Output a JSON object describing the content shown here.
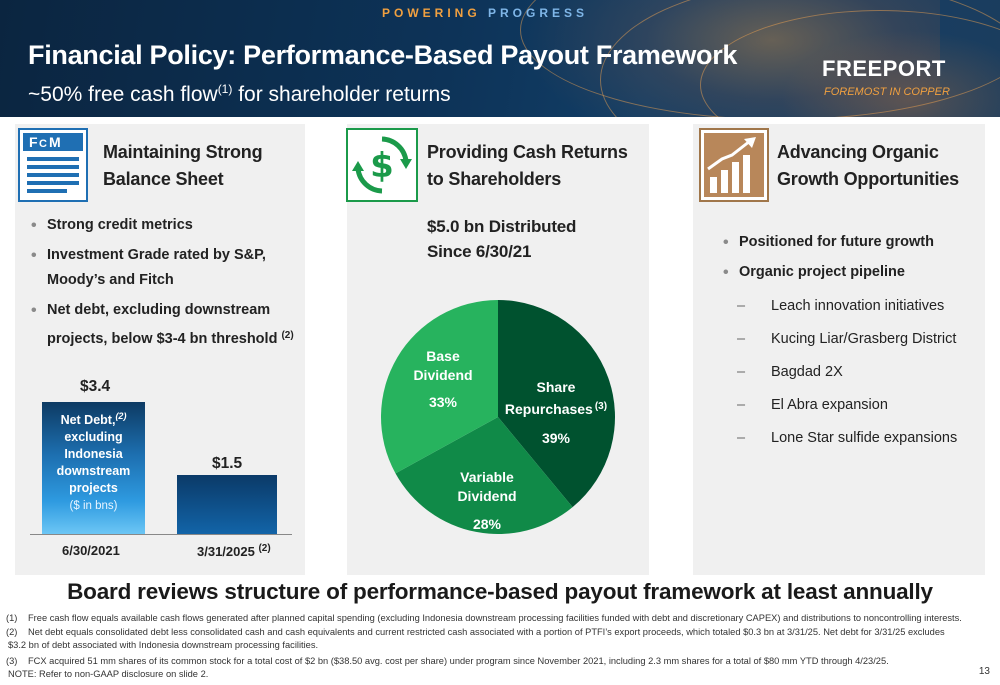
{
  "header": {
    "tagline_part1": "POWERING",
    "tagline_part2": "PROGRESS",
    "title": "Financial Policy: Performance-Based Payout Framework",
    "subtitle_prefix": "~50% free cash flow",
    "subtitle_ref": "(1)",
    "subtitle_suffix": " for shareholder returns",
    "logo": "FREEPORT",
    "logo_tagline": "FOREMOST IN COPPER"
  },
  "panel1": {
    "icon": "fcx-document-icon",
    "title_line1": "Maintaining Strong",
    "title_line2": "Balance Sheet",
    "bullets": [
      "Strong credit metrics",
      "Investment Grade rated by S&P, Moody’s and Fitch",
      "Net debt, excluding downstream projects, below $3-4 bn threshold"
    ],
    "bullet3_ref": "(2)",
    "bar_chart": {
      "bar1_value_label": "$3.4",
      "bar2_value_label": "$1.5",
      "bar1_text_line1": "Net Debt,",
      "bar1_text_ref": "(2)",
      "bar1_text_line2": "excluding",
      "bar1_text_line3": "Indonesia",
      "bar1_text_line4": "downstream",
      "bar1_text_line5": "projects",
      "units": "($ in bns)",
      "x1": "6/30/2021",
      "x2": "3/31/2025",
      "x2_ref": "(2)"
    }
  },
  "panel2": {
    "icon": "dollar-cycle-icon",
    "title_line1": "Providing Cash Returns",
    "title_line2": "to Shareholders",
    "chart_title_line1": "$5.0 bn Distributed",
    "chart_title_line2": "Since 6/30/21",
    "slices": {
      "base_label1": "Base",
      "base_label2": "Dividend",
      "base_pct": "33%",
      "share_label1": "Share",
      "share_label2": "Repurchases",
      "share_ref": "(3)",
      "share_pct": "39%",
      "var_label1": "Variable",
      "var_label2": "Dividend",
      "var_pct": "28%"
    },
    "colors": {
      "share": "#00522f",
      "variable": "#108a48",
      "base": "#27b35e"
    }
  },
  "panel3": {
    "icon": "growth-chart-icon",
    "title_line1": "Advancing Organic",
    "title_line2": "Growth Opportunities",
    "bullets": [
      "Positioned for future growth",
      "Organic project pipeline"
    ],
    "sub_items": [
      "Leach innovation initiatives",
      "Kucing Liar/Grasberg District",
      "Bagdad 2X",
      "El Abra expansion",
      "Lone Star sulfide expansions"
    ]
  },
  "banner": "Board reviews structure of performance-based payout framework at least annually",
  "footnotes": {
    "n1": "(1)",
    "f1": "Free cash flow equals available cash flows generated after planned capital spending (excluding Indonesia downstream processing facilities funded with debt and discretionary CAPEX) and distributions to noncontrolling interests.",
    "n2": "(2)",
    "f2a": "Net debt equals consolidated debt less consolidated cash and cash equivalents and current restricted cash associated with a portion of PTFI’s export proceeds, which totaled $0.3 bn at 3/31/25. Net debt for 3/31/25 excludes",
    "f2b": "$3.2 bn of debt associated with Indonesia downstream processing facilities.",
    "n3": "(3)",
    "f3": "FCX acquired 51 mm shares of its common stock for a total cost of $2 bn ($38.50 avg. cost per share) under program since November 2021, including 2.3 mm shares for a total of $80 mm YTD through 4/23/25.",
    "note": "NOTE: Refer to non-GAAP disclosure on slide 2."
  },
  "page_number": "13",
  "chart_data": [
    {
      "type": "bar",
      "title": "",
      "categories": [
        "6/30/2021",
        "3/31/2025"
      ],
      "values": [
        3.4,
        1.5
      ],
      "ylabel": "($ in bns)",
      "series": [
        {
          "name": "Net Debt, excluding Indonesia downstream projects",
          "values": [
            3.4,
            1.5
          ]
        }
      ]
    },
    {
      "type": "pie",
      "title": "$5.0 bn Distributed Since 6/30/21",
      "categories": [
        "Share Repurchases",
        "Variable Dividend",
        "Base Dividend"
      ],
      "values": [
        39,
        28,
        33
      ]
    }
  ]
}
